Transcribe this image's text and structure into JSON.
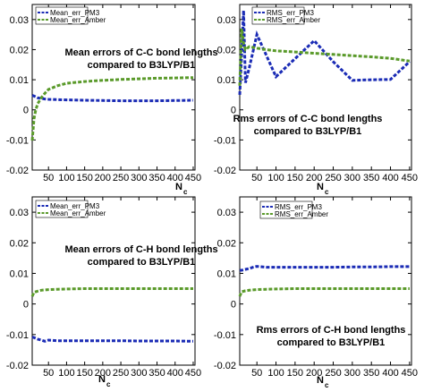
{
  "chart_data": [
    {
      "type": "line",
      "annotation": [
        "Mean errors of C-C bond lengths",
        "compared to B3LYP/B1"
      ],
      "xlabel": "N",
      "xlabel_sub": "c",
      "ylabel": "",
      "xlim": [
        5,
        455
      ],
      "ylim": [
        -0.02,
        0.035
      ],
      "xticks": [
        50,
        100,
        150,
        200,
        250,
        300,
        350,
        400,
        450
      ],
      "yticks": [
        -0.02,
        -0.01,
        0,
        0.01,
        0.02,
        0.03
      ],
      "ytick_labels": [
        "-0.02",
        "-0.01",
        "0",
        "0.01",
        "0.02",
        "0.03"
      ],
      "legend_position": "top-left",
      "series": [
        {
          "name": "Mean_err_PM3",
          "color": "#1a2bb5",
          "x": [
            5,
            10,
            15,
            20,
            30,
            40,
            50,
            75,
            100,
            150,
            200,
            250,
            300,
            350,
            400,
            450
          ],
          "y": [
            0.0048,
            0.0046,
            0.0043,
            0.004,
            0.0038,
            0.0036,
            0.0035,
            0.0034,
            0.0033,
            0.0032,
            0.0031,
            0.003,
            0.003,
            0.003,
            0.0031,
            0.0032
          ]
        },
        {
          "name": "Mean_err_Amber",
          "color": "#5a9a2a",
          "x": [
            5,
            8,
            10,
            15,
            20,
            30,
            40,
            50,
            75,
            100,
            150,
            200,
            250,
            300,
            350,
            400,
            450
          ],
          "y": [
            -0.0102,
            -0.006,
            -0.003,
            0.0,
            0.002,
            0.004,
            0.0055,
            0.0068,
            0.008,
            0.0088,
            0.0094,
            0.0098,
            0.0101,
            0.0103,
            0.0105,
            0.0106,
            0.0107
          ]
        }
      ]
    },
    {
      "type": "line",
      "annotation": [
        "Rms errors of C-C bond lengths",
        "compared to B3LYP/B1"
      ],
      "xlabel": "N",
      "xlabel_sub": "c",
      "ylabel": "",
      "xlim": [
        5,
        455
      ],
      "ylim": [
        -0.02,
        0.035
      ],
      "xticks": [
        50,
        100,
        150,
        200,
        250,
        300,
        350,
        400,
        450
      ],
      "yticks": [
        -0.02,
        -0.01,
        0,
        0.01,
        0.02,
        0.03
      ],
      "ytick_labels": [
        "-0.02",
        "-0.01",
        "0",
        "0.01",
        "0.02",
        "0.03"
      ],
      "legend_position": "top-left",
      "series": [
        {
          "name": "RMS_err_PM3",
          "color": "#1a2bb5",
          "x": [
            5,
            10,
            15,
            20,
            30,
            50,
            75,
            100,
            150,
            200,
            250,
            300,
            350,
            400,
            450
          ],
          "y": [
            0.005,
            0.018,
            0.033,
            0.009,
            0.014,
            0.025,
            0.018,
            0.011,
            0.017,
            0.023,
            0.016,
            0.0098,
            0.01,
            0.0101,
            0.016
          ]
        },
        {
          "name": "RMS_err_Amber",
          "color": "#5a9a2a",
          "x": [
            5,
            10,
            15,
            20,
            30,
            50,
            75,
            100,
            150,
            200,
            250,
            300,
            350,
            400,
            450
          ],
          "y": [
            0.008,
            0.027,
            0.022,
            0.02,
            0.021,
            0.0205,
            0.02,
            0.0196,
            0.0192,
            0.0188,
            0.0184,
            0.018,
            0.0176,
            0.0171,
            0.0162
          ]
        }
      ]
    },
    {
      "type": "line",
      "annotation": [
        "Mean errors of C-H bond lengths",
        "compared to B3LYP/B1"
      ],
      "xlabel": "N",
      "xlabel_sub": "c",
      "ylabel": "",
      "xlim": [
        5,
        455
      ],
      "ylim": [
        -0.02,
        0.035
      ],
      "xticks": [
        50,
        100,
        150,
        200,
        250,
        300,
        350,
        400,
        450
      ],
      "yticks": [
        -0.02,
        -0.01,
        0,
        0.01,
        0.02,
        0.03
      ],
      "ytick_labels": [
        "-0.02",
        "-0.01",
        "0",
        "0.01",
        "0.02",
        "0.03"
      ],
      "legend_position": "top-left",
      "series": [
        {
          "name": "Mean_err_PM3",
          "color": "#1a2bb5",
          "x": [
            5,
            10,
            20,
            30,
            40,
            50,
            75,
            100,
            150,
            200,
            250,
            300,
            350,
            400,
            450
          ],
          "y": [
            -0.0108,
            -0.011,
            -0.0115,
            -0.0118,
            -0.0122,
            -0.0118,
            -0.012,
            -0.012,
            -0.012,
            -0.012,
            -0.012,
            -0.0121,
            -0.0121,
            -0.0121,
            -0.0122
          ]
        },
        {
          "name": "Mean_err_Amber",
          "color": "#5a9a2a",
          "x": [
            5,
            10,
            20,
            30,
            40,
            50,
            75,
            100,
            150,
            200,
            250,
            300,
            350,
            400,
            450
          ],
          "y": [
            0.0025,
            0.0038,
            0.0042,
            0.0045,
            0.0046,
            0.0047,
            0.0048,
            0.0049,
            0.005,
            0.005,
            0.005,
            0.005,
            0.005,
            0.005,
            0.005
          ]
        }
      ]
    },
    {
      "type": "line",
      "annotation": [
        "Rms errors of C-H bond lengths",
        "compared to B3LYP/B1"
      ],
      "xlabel": "N",
      "xlabel_sub": "c",
      "ylabel": "",
      "xlim": [
        5,
        455
      ],
      "ylim": [
        -0.02,
        0.035
      ],
      "xticks": [
        50,
        100,
        150,
        200,
        250,
        300,
        350,
        400,
        450
      ],
      "yticks": [
        -0.02,
        -0.01,
        0,
        0.01,
        0.02,
        0.03
      ],
      "ytick_labels": [
        "-0.02",
        "-0.01",
        "0",
        "0.01",
        "0.02",
        "0.03"
      ],
      "legend_position": "top-left",
      "series": [
        {
          "name": "RMS_err_PM3",
          "color": "#1a2bb5",
          "x": [
            5,
            10,
            20,
            30,
            40,
            50,
            75,
            100,
            150,
            200,
            250,
            300,
            350,
            400,
            450
          ],
          "y": [
            0.011,
            0.011,
            0.0113,
            0.0116,
            0.012,
            0.0123,
            0.012,
            0.012,
            0.012,
            0.012,
            0.012,
            0.0121,
            0.0121,
            0.0122,
            0.0122
          ]
        },
        {
          "name": "RMS_err_Amber",
          "color": "#5a9a2a",
          "x": [
            5,
            10,
            20,
            30,
            40,
            50,
            75,
            100,
            150,
            200,
            250,
            300,
            350,
            400,
            450
          ],
          "y": [
            0.0025,
            0.004,
            0.0043,
            0.0045,
            0.0046,
            0.0047,
            0.0048,
            0.0049,
            0.005,
            0.005,
            0.005,
            0.005,
            0.005,
            0.005,
            0.005
          ]
        }
      ]
    }
  ]
}
